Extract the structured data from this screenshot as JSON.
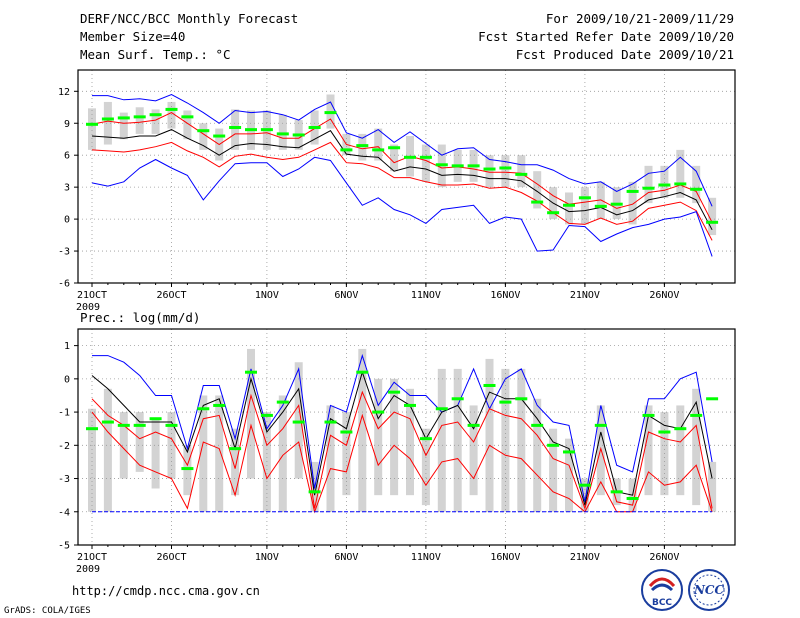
{
  "header": {
    "left": [
      "DERF/NCC/BCC Monthly Forecast",
      "Member Size=40",
      "Mean Surf. Temp.: °C"
    ],
    "right": [
      "For 2009/10/21-2009/11/29",
      "Fcst Started Refer Date 2009/10/20",
      "Fcst Produced Date 2009/10/21"
    ]
  },
  "footer": {
    "url": "http://cmdp.ncc.cma.gov.cn",
    "credit": "GrADS: COLA/IGES",
    "logo_bcc": "BCC",
    "logo_ncc": "NCC"
  },
  "colors": {
    "box": "#d3d3d3",
    "mean": "#00ff00",
    "ensemble": "#000000",
    "inner": "#ff0000",
    "outer": "#0000ff",
    "grid": "#999999"
  },
  "chart_data": [
    {
      "type": "line",
      "title": "Mean Surf. Temp.: °C",
      "ylabel": "°C",
      "ylim": [
        -6,
        14
      ],
      "yticks": [
        -6,
        -3,
        0,
        3,
        6,
        9,
        12
      ],
      "x_tick_labels": [
        {
          "day": 1,
          "label": "21OCT",
          "sub": "2009"
        },
        {
          "day": 6,
          "label": "26OCT"
        },
        {
          "day": 12,
          "label": "1NOV"
        },
        {
          "day": 17,
          "label": "6NOV"
        },
        {
          "day": 22,
          "label": "11NOV"
        },
        {
          "day": 27,
          "label": "16NOV"
        },
        {
          "day": 32,
          "label": "21NOV"
        },
        {
          "day": 37,
          "label": "26NOV"
        }
      ],
      "days": 40,
      "series": [
        {
          "name": "upper-bound",
          "color": "#0000ff",
          "values": [
            11.6,
            11.6,
            11.2,
            11.3,
            11.1,
            11.7,
            10.9,
            10.0,
            9.0,
            10.2,
            10.0,
            10.1,
            9.8,
            9.3,
            10.3,
            11.0,
            8.1,
            7.6,
            8.4,
            7.2,
            8.2,
            7.1,
            6.0,
            6.6,
            6.7,
            5.6,
            5.4,
            5.1,
            5.1,
            4.6,
            3.8,
            3.3,
            3.5,
            2.6,
            3.3,
            4.3,
            4.5,
            5.8,
            4.5,
            1.2
          ]
        },
        {
          "name": "upper-quartile",
          "color": "#ff0000",
          "values": [
            8.9,
            9.2,
            9.0,
            9.1,
            9.3,
            10.0,
            9.0,
            8.0,
            7.0,
            8.0,
            8.0,
            8.1,
            7.6,
            7.6,
            8.5,
            9.4,
            7.0,
            6.6,
            6.8,
            5.3,
            5.9,
            5.5,
            4.8,
            4.9,
            4.7,
            4.4,
            4.4,
            4.3,
            3.3,
            2.2,
            1.4,
            1.6,
            1.8,
            1.0,
            1.4,
            2.5,
            2.7,
            3.2,
            2.6,
            -0.3
          ]
        },
        {
          "name": "ensemble-mean",
          "color": "#000000",
          "values": [
            7.8,
            7.7,
            7.6,
            7.8,
            7.8,
            8.4,
            7.6,
            6.9,
            6.0,
            6.9,
            7.1,
            7.0,
            6.8,
            6.7,
            7.5,
            8.3,
            6.1,
            5.9,
            5.8,
            4.5,
            4.9,
            4.7,
            4.1,
            4.2,
            4.1,
            3.8,
            3.8,
            3.6,
            2.6,
            1.5,
            0.7,
            0.8,
            1.1,
            0.4,
            0.8,
            1.8,
            2.1,
            2.5,
            1.8,
            -1.0
          ]
        },
        {
          "name": "lower-quartile",
          "color": "#ff0000",
          "values": [
            6.5,
            6.4,
            6.3,
            6.5,
            6.8,
            7.2,
            6.4,
            5.8,
            4.9,
            5.9,
            6.1,
            5.8,
            5.6,
            5.8,
            6.5,
            7.2,
            5.3,
            5.2,
            4.8,
            3.9,
            3.9,
            3.5,
            3.2,
            3.2,
            3.3,
            2.9,
            3.0,
            2.5,
            1.7,
            0.6,
            -0.4,
            -0.5,
            0.1,
            -0.5,
            -0.2,
            1.0,
            1.3,
            1.6,
            0.8,
            -2.0
          ]
        },
        {
          "name": "lower-bound",
          "color": "#0000ff",
          "values": [
            3.4,
            3.1,
            3.5,
            4.8,
            5.6,
            4.8,
            4.1,
            1.8,
            3.6,
            5.2,
            5.3,
            5.3,
            4.0,
            4.7,
            5.8,
            5.5,
            3.4,
            1.3,
            2.0,
            0.9,
            0.4,
            -0.4,
            0.9,
            1.1,
            1.3,
            -0.4,
            0.2,
            0.0,
            -3.0,
            -2.9,
            -0.6,
            -0.7,
            -2.1,
            -1.4,
            -0.8,
            -0.5,
            0.0,
            0.2,
            0.7,
            -3.5
          ]
        }
      ],
      "mean_markers": [
        8.9,
        9.4,
        9.5,
        9.6,
        9.8,
        10.3,
        9.6,
        8.3,
        7.8,
        8.6,
        8.4,
        8.4,
        8.0,
        7.9,
        8.6,
        10.0,
        6.5,
        6.9,
        6.5,
        6.7,
        5.8,
        5.8,
        5.1,
        5.0,
        5.0,
        4.7,
        4.8,
        4.2,
        1.6,
        0.6,
        1.3,
        2.0,
        1.2,
        1.4,
        2.6,
        2.9,
        3.2,
        3.3,
        2.8,
        -0.3
      ],
      "box_ranges": [
        [
          6.5,
          10.4
        ],
        [
          7.0,
          11.0
        ],
        [
          7.5,
          10.0
        ],
        [
          8.0,
          10.5
        ],
        [
          8.0,
          10.3
        ],
        [
          8.5,
          11.0
        ],
        [
          7.5,
          10.2
        ],
        [
          6.5,
          9.0
        ],
        [
          5.5,
          8.5
        ],
        [
          6.5,
          10.3
        ],
        [
          6.5,
          10.2
        ],
        [
          6.5,
          10.2
        ],
        [
          6.5,
          9.8
        ],
        [
          6.5,
          9.3
        ],
        [
          7.0,
          10.2
        ],
        [
          8.5,
          11.7
        ],
        [
          6.0,
          8.0
        ],
        [
          5.5,
          8.0
        ],
        [
          5.5,
          8.5
        ],
        [
          4.5,
          7.0
        ],
        [
          4.0,
          7.8
        ],
        [
          3.5,
          7.0
        ],
        [
          3.0,
          7.0
        ],
        [
          3.5,
          6.5
        ],
        [
          3.5,
          6.5
        ],
        [
          3.0,
          6.0
        ],
        [
          3.0,
          6.0
        ],
        [
          3.0,
          6.0
        ],
        [
          1.0,
          4.5
        ],
        [
          0.0,
          3.0
        ],
        [
          -0.5,
          2.5
        ],
        [
          -0.5,
          3.0
        ],
        [
          0.0,
          3.5
        ],
        [
          0.0,
          3.0
        ],
        [
          -0.5,
          3.5
        ],
        [
          1.5,
          5.0
        ],
        [
          2.0,
          5.0
        ],
        [
          2.0,
          6.5
        ],
        [
          1.5,
          5.0
        ],
        [
          -1.5,
          2.0
        ]
      ]
    },
    {
      "type": "line",
      "title": "Prec.: log(mm/d)",
      "ylabel": "log(mm/d)",
      "ylim": [
        -5,
        1.5
      ],
      "yticks": [
        -5,
        -4,
        -3,
        -2,
        -1,
        0,
        1
      ],
      "x_tick_labels": [
        {
          "day": 1,
          "label": "21OCT",
          "sub": "2009"
        },
        {
          "day": 6,
          "label": "26OCT"
        },
        {
          "day": 12,
          "label": "1NOV"
        },
        {
          "day": 17,
          "label": "6NOV"
        },
        {
          "day": 22,
          "label": "11NOV"
        },
        {
          "day": 27,
          "label": "16NOV"
        },
        {
          "day": 32,
          "label": "21NOV"
        },
        {
          "day": 37,
          "label": "26NOV"
        }
      ],
      "days": 40,
      "series": [
        {
          "name": "upper-bound",
          "color": "#0000ff",
          "values": [
            0.7,
            0.7,
            0.5,
            0.1,
            -0.5,
            -0.5,
            -2.1,
            -0.2,
            -0.2,
            -1.8,
            0.3,
            -1.5,
            -0.8,
            0.3,
            -3.3,
            -0.8,
            -1.0,
            0.7,
            -0.8,
            -0.1,
            -0.5,
            -0.5,
            -1.0,
            -0.8,
            0.3,
            -0.9,
            0.0,
            0.3,
            -0.8,
            -1.3,
            -1.4,
            -3.7,
            -0.8,
            -2.6,
            -2.8,
            -0.6,
            -0.6,
            0.0,
            0.2,
            -2.5
          ]
        },
        {
          "name": "ensemble-mean",
          "color": "#000000",
          "values": [
            0.1,
            -0.3,
            -0.8,
            -1.3,
            -1.3,
            -1.3,
            -2.2,
            -0.8,
            -0.6,
            -2.1,
            0.0,
            -1.6,
            -1.0,
            -0.3,
            -3.5,
            -1.2,
            -1.5,
            0.2,
            -1.2,
            -0.5,
            -0.8,
            -1.8,
            -1.0,
            -0.8,
            -1.5,
            -0.4,
            -0.6,
            -0.6,
            -1.2,
            -1.9,
            -2.1,
            -3.8,
            -1.6,
            -3.4,
            -3.5,
            -1.1,
            -1.4,
            -1.5,
            -0.7,
            -3.0
          ]
        },
        {
          "name": "upper-quartile",
          "color": "#ff0000",
          "values": [
            -0.6,
            -1.1,
            -1.4,
            -1.8,
            -1.6,
            -1.8,
            -2.6,
            -1.2,
            -1.1,
            -2.7,
            -0.5,
            -2.0,
            -1.5,
            -0.8,
            -3.9,
            -1.7,
            -2.0,
            -0.4,
            -1.5,
            -1.0,
            -1.2,
            -2.3,
            -1.4,
            -1.3,
            -1.9,
            -0.9,
            -1.1,
            -1.2,
            -1.7,
            -2.4,
            -2.6,
            -3.9,
            -2.1,
            -3.7,
            -3.8,
            -1.6,
            -1.8,
            -1.9,
            -1.4,
            -3.9
          ]
        },
        {
          "name": "lower-quartile",
          "color": "#ff0000",
          "values": [
            -1.0,
            -1.6,
            -2.1,
            -2.6,
            -2.8,
            -3.0,
            -3.9,
            -1.9,
            -2.1,
            -3.5,
            -1.4,
            -3.0,
            -2.3,
            -1.9,
            -4.0,
            -2.7,
            -2.8,
            -1.1,
            -2.6,
            -2.0,
            -2.4,
            -3.2,
            -2.5,
            -2.4,
            -3.0,
            -2.0,
            -2.3,
            -2.4,
            -2.9,
            -3.4,
            -3.6,
            -4.0,
            -3.1,
            -4.0,
            -4.0,
            -2.8,
            -3.2,
            -3.1,
            -2.6,
            -4.0
          ]
        },
        {
          "name": "lower-bound",
          "color": "#0000ff",
          "values": [
            -4.0,
            -4.0,
            -4.0,
            -4.0,
            -4.0,
            -4.0,
            -4.0,
            -4.0,
            -4.0,
            -4.0,
            -4.0,
            -4.0,
            -4.0,
            -4.0,
            -4.0,
            -4.0,
            -4.0,
            -4.0,
            -4.0,
            -4.0,
            -4.0,
            -4.0,
            -4.0,
            -4.0,
            -4.0,
            -4.0,
            -4.0,
            -4.0,
            -4.0,
            -4.0,
            -4.0,
            -4.0,
            -4.0,
            -4.0,
            -4.0,
            -4.0,
            -4.0,
            -4.0,
            -4.0,
            -4.0
          ]
        }
      ],
      "mean_markers": [
        -1.5,
        -1.3,
        -1.4,
        -1.4,
        -1.2,
        -1.4,
        -2.7,
        -0.9,
        -0.8,
        -2.1,
        0.2,
        -1.1,
        -0.7,
        -1.3,
        -3.4,
        -1.3,
        -1.6,
        0.2,
        -1.0,
        -0.4,
        -0.8,
        -1.8,
        -0.9,
        -0.6,
        -1.4,
        -0.2,
        -0.7,
        -0.6,
        -1.4,
        -2.0,
        -2.2,
        -3.2,
        -1.4,
        -3.4,
        -3.6,
        -1.1,
        -1.6,
        -1.5,
        -1.1,
        -0.6
      ],
      "box_ranges": [
        [
          -4.0,
          -0.9
        ],
        [
          -4.0,
          -0.3
        ],
        [
          -3.0,
          -1.0
        ],
        [
          -2.8,
          -1.0
        ],
        [
          -3.3,
          -1.2
        ],
        [
          -3.0,
          -1.0
        ],
        [
          -3.5,
          -2.0
        ],
        [
          -4.0,
          -0.5
        ],
        [
          -4.0,
          -0.5
        ],
        [
          -3.5,
          -1.5
        ],
        [
          -3.0,
          0.9
        ],
        [
          -4.0,
          -1.0
        ],
        [
          -4.0,
          -0.5
        ],
        [
          -3.0,
          0.5
        ],
        [
          -4.0,
          -2.5
        ],
        [
          -4.0,
          -0.8
        ],
        [
          -3.5,
          -1.0
        ],
        [
          -4.0,
          0.9
        ],
        [
          -3.5,
          0.0
        ],
        [
          -3.5,
          0.0
        ],
        [
          -3.5,
          -0.3
        ],
        [
          -3.8,
          -1.5
        ],
        [
          -4.0,
          0.3
        ],
        [
          -4.0,
          0.3
        ],
        [
          -3.5,
          -0.8
        ],
        [
          -4.0,
          0.6
        ],
        [
          -4.0,
          0.3
        ],
        [
          -4.0,
          0.3
        ],
        [
          -4.0,
          -0.6
        ],
        [
          -4.0,
          -1.5
        ],
        [
          -4.0,
          -1.8
        ],
        [
          -4.0,
          -3.0
        ],
        [
          -3.5,
          -0.8
        ],
        [
          -3.8,
          -3.0
        ],
        [
          -4.0,
          -3.0
        ],
        [
          -3.5,
          -0.8
        ],
        [
          -3.5,
          -1.0
        ],
        [
          -3.5,
          -0.8
        ],
        [
          -3.8,
          -0.3
        ],
        [
          -4.0,
          -2.5
        ]
      ]
    }
  ]
}
